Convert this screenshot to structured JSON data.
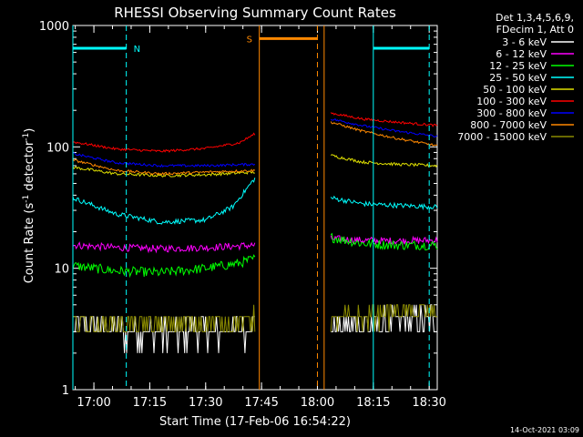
{
  "chart_data": {
    "type": "line",
    "title": "RHESSI Observing Summary Count Rates",
    "xlabel": "Start Time (17-Feb-06 16:54:22)",
    "ylabel_main": "Count Rate (s",
    "ylabel_sup1": "-1",
    "ylabel_mid": " detector",
    "ylabel_sup2": "-1",
    "ylabel_end": ")",
    "yscale": "log",
    "ylim": [
      1,
      1000
    ],
    "xlim": [
      16.906,
      18.536
    ],
    "x_ticks": [
      {
        "v": 17.0,
        "label": "17:00"
      },
      {
        "v": 17.25,
        "label": "17:15"
      },
      {
        "v": 17.5,
        "label": "17:30"
      },
      {
        "v": 17.75,
        "label": "17:45"
      },
      {
        "v": 18.0,
        "label": "18:00"
      },
      {
        "v": 18.25,
        "label": "18:15"
      },
      {
        "v": 18.5,
        "label": "18:30"
      }
    ],
    "y_ticks": [
      {
        "v": 1,
        "label": "1"
      },
      {
        "v": 10,
        "label": "10"
      },
      {
        "v": 100,
        "label": "100"
      },
      {
        "v": 1000,
        "label": "1000"
      }
    ],
    "legend_header": [
      "Det 1,3,4,5,6,9,",
      "FDecim 1, Att 0"
    ],
    "series": [
      {
        "name": "3 - 6 keV",
        "color": "#ffffff",
        "points": [
          [
            16.906,
            3.2
          ],
          [
            17.1,
            3.1
          ],
          [
            17.3,
            2.9
          ],
          [
            17.5,
            3.0
          ],
          [
            17.72,
            3.2
          ]
        ],
        "points2": [
          [
            18.06,
            3.2
          ],
          [
            18.2,
            3.4
          ],
          [
            18.35,
            3.6
          ],
          [
            18.536,
            3.8
          ]
        ],
        "noise": 0.12
      },
      {
        "name": "6 - 12 keV",
        "color": "#ff00ff",
        "points": [
          [
            16.906,
            15.5
          ],
          [
            17.1,
            14.8
          ],
          [
            17.3,
            14.5
          ],
          [
            17.5,
            14.8
          ],
          [
            17.72,
            15.5
          ]
        ],
        "points2": [
          [
            18.06,
            17.5
          ],
          [
            18.2,
            17.0
          ],
          [
            18.35,
            16.8
          ],
          [
            18.536,
            17.0
          ]
        ],
        "noise": 0.03
      },
      {
        "name": "12 - 25 keV",
        "color": "#00ff00",
        "points": [
          [
            16.906,
            10.5
          ],
          [
            17.1,
            9.5
          ],
          [
            17.3,
            9.2
          ],
          [
            17.5,
            10.0
          ],
          [
            17.65,
            11.0
          ],
          [
            17.72,
            12.0
          ]
        ],
        "points2": [
          [
            18.06,
            18.0
          ],
          [
            18.2,
            16.0
          ],
          [
            18.35,
            15.5
          ],
          [
            18.536,
            15.5
          ]
        ],
        "noise": 0.04
      },
      {
        "name": "25 - 50 keV",
        "color": "#00ffff",
        "points": [
          [
            16.906,
            38
          ],
          [
            17.1,
            28
          ],
          [
            17.3,
            24
          ],
          [
            17.5,
            25
          ],
          [
            17.62,
            32
          ],
          [
            17.72,
            55
          ]
        ],
        "points2": [
          [
            18.06,
            38
          ],
          [
            18.2,
            34
          ],
          [
            18.35,
            33
          ],
          [
            18.536,
            32
          ]
        ],
        "noise": 0.02
      },
      {
        "name": "50 - 100 keV",
        "color": "#e0e000",
        "points": [
          [
            16.906,
            68
          ],
          [
            17.1,
            60
          ],
          [
            17.3,
            58
          ],
          [
            17.5,
            59
          ],
          [
            17.72,
            62
          ]
        ],
        "points2": [
          [
            18.06,
            85
          ],
          [
            18.2,
            75
          ],
          [
            18.35,
            72
          ],
          [
            18.536,
            70
          ]
        ],
        "noise": 0.012
      },
      {
        "name": "100 - 300 keV",
        "color": "#ff0000",
        "points": [
          [
            16.906,
            110
          ],
          [
            17.1,
            96
          ],
          [
            17.3,
            92
          ],
          [
            17.5,
            97
          ],
          [
            17.65,
            108
          ],
          [
            17.72,
            128
          ]
        ],
        "points2": [
          [
            18.06,
            190
          ],
          [
            18.2,
            170
          ],
          [
            18.35,
            160
          ],
          [
            18.536,
            150
          ]
        ],
        "noise": 0.01
      },
      {
        "name": "300 - 800 keV",
        "color": "#0000ff",
        "points": [
          [
            16.906,
            88
          ],
          [
            17.1,
            74
          ],
          [
            17.3,
            70
          ],
          [
            17.5,
            70
          ],
          [
            17.72,
            72
          ]
        ],
        "points2": [
          [
            18.06,
            170
          ],
          [
            18.2,
            150
          ],
          [
            18.35,
            135
          ],
          [
            18.536,
            122
          ]
        ],
        "noise": 0.01
      },
      {
        "name": "800 - 7000 keV",
        "color": "#ff8800",
        "points": [
          [
            16.906,
            78
          ],
          [
            17.1,
            64
          ],
          [
            17.3,
            60
          ],
          [
            17.5,
            62
          ],
          [
            17.72,
            64
          ]
        ],
        "points2": [
          [
            18.06,
            160
          ],
          [
            18.2,
            135
          ],
          [
            18.35,
            118
          ],
          [
            18.536,
            102
          ]
        ],
        "noise": 0.01
      },
      {
        "name": "7000 - 15000 keV",
        "color": "#8b8b00",
        "points": [
          [
            16.906,
            3.6
          ],
          [
            17.1,
            3.5
          ],
          [
            17.3,
            3.4
          ],
          [
            17.5,
            3.6
          ],
          [
            17.72,
            3.8
          ]
        ],
        "points2": [
          [
            18.06,
            3.8
          ],
          [
            18.2,
            4.0
          ],
          [
            18.35,
            4.2
          ],
          [
            18.536,
            4.5
          ]
        ],
        "noise": 0.08
      }
    ],
    "night_bars": [
      {
        "label": "N",
        "x_start": 16.906,
        "x_end": 17.145,
        "level": 650,
        "color": "#00ffff"
      },
      {
        "label": "",
        "x_start": 18.25,
        "x_end": 18.5,
        "level": 650,
        "color": "#00ffff"
      }
    ],
    "saa_bar": {
      "label": "S",
      "x_start": 17.74,
      "x_end": 18.0,
      "level": 780,
      "color": "#ff8800"
    },
    "vlines": [
      {
        "x": 16.906,
        "color": "#00ffff",
        "style": "solid"
      },
      {
        "x": 17.145,
        "color": "#00ffff",
        "style": "dashed"
      },
      {
        "x": 17.74,
        "color": "#ff8800",
        "style": "solid"
      },
      {
        "x": 18.0,
        "color": "#ff8800",
        "style": "dashed"
      },
      {
        "x": 18.03,
        "color": "#ff8800",
        "style": "solid"
      },
      {
        "x": 18.25,
        "color": "#00ffff",
        "style": "solid"
      },
      {
        "x": 18.5,
        "color": "#00ffff",
        "style": "dashed"
      }
    ],
    "footer_date": "14-Oct-2021 03:09"
  }
}
